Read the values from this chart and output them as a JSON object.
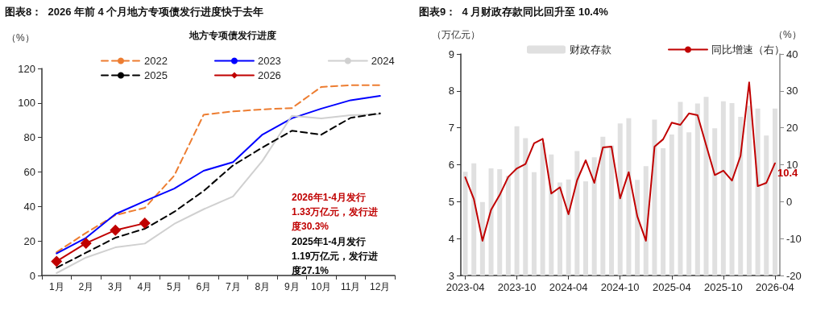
{
  "chart_data": [
    {
      "type": "line",
      "title": "图表8：  2026 年前 4 个月地方专项债发行进度快于去年",
      "subtitle": "地方专项债发行进度",
      "ylabel": "（%）",
      "categories": [
        "1月",
        "2月",
        "3月",
        "4月",
        "5月",
        "6月",
        "7月",
        "8月",
        "9月",
        "10月",
        "11月",
        "12月"
      ],
      "series": [
        {
          "name": "2022",
          "color": "#ed7d31",
          "line_style": "dashed",
          "marker": "none",
          "values": [
            13.5,
            24.7,
            35,
            39.2,
            57.9,
            93.2,
            95.1,
            96.3,
            97,
            109.3,
            110.3,
            110.3
          ]
        },
        {
          "name": "2023",
          "color": "#0000ff",
          "line_style": "solid",
          "marker": "none",
          "values": [
            12.8,
            21.8,
            35.6,
            43.1,
            50.4,
            60.7,
            65.7,
            81.7,
            91.1,
            96.7,
            101.6,
            104.1
          ]
        },
        {
          "name": "2024",
          "color": "#d0d0d0",
          "line_style": "solid",
          "marker": "none",
          "values": [
            1.4,
            10.4,
            16.3,
            18.5,
            29.9,
            38.4,
            45.8,
            66.5,
            92.6,
            91.1,
            92.9,
            93.5
          ]
        },
        {
          "name": "2025",
          "color": "#000000",
          "line_style": "dashed",
          "marker": "none",
          "values": [
            4.5,
            13.2,
            21.9,
            27.1,
            36.9,
            49,
            63.8,
            74.2,
            83.9,
            81.6,
            91.4,
            94
          ]
        },
        {
          "name": "2026",
          "color": "#c00000",
          "line_style": "solid",
          "marker": "diamond",
          "values": [
            8.2,
            18.7,
            26.3,
            30.3,
            null,
            null,
            null,
            null,
            null,
            null,
            null,
            null
          ]
        }
      ],
      "ylim": [
        0,
        120
      ],
      "yticks": [
        0,
        20,
        40,
        60,
        80,
        100,
        120
      ],
      "grid": false,
      "legend": "top",
      "annotations": [
        "2026年1-4月发行1.33万亿元，发行进度30.3%",
        "2025年1-4月发行1.19万亿元，发行进度27.1%"
      ]
    },
    {
      "type": "bar",
      "title": "图表9：  4 月财政存款同比回升至 10.4%",
      "ylabel": "（万亿元）",
      "y2label": "（%）",
      "x": [
        "2023-04",
        "2023-05",
        "2023-06",
        "2023-07",
        "2023-08",
        "2023-09",
        "2023-10",
        "2023-11",
        "2023-12",
        "2024-01",
        "2024-02",
        "2024-03",
        "2024-04",
        "2024-05",
        "2024-06",
        "2024-07",
        "2024-08",
        "2024-09",
        "2024-10",
        "2024-11",
        "2024-12",
        "2025-01",
        "2025-02",
        "2025-03",
        "2025-04",
        "2025-05",
        "2025-06",
        "2025-07",
        "2025-08",
        "2025-09",
        "2025-10",
        "2025-11",
        "2025-12",
        "2026-01",
        "2026-02",
        "2026-03",
        "2026-04"
      ],
      "series": [
        {
          "name": "财政存款",
          "color": "#e0e0e0",
          "values": [
            5.81,
            6.04,
            4.99,
            5.9,
            5.88,
            5.7,
            7.04,
            6.72,
            5.8,
            6.6,
            6.28,
            5.52,
            5.6,
            6.37,
            5.55,
            6.2,
            6.76,
            6.52,
            7.12,
            7.26,
            5.59,
            5.96,
            7.22,
            6.45,
            6.82,
            7.7,
            6.88,
            7.66,
            7.84,
            6.99,
            7.72,
            7.67,
            7.3,
            7.6,
            7.52,
            6.79,
            7.52
          ]
        },
        {
          "name": "同比增速（右）",
          "type": "line",
          "axis": "y2",
          "color": "#c00000",
          "marker": "none",
          "line_style": "solid",
          "values": [
            6.6,
            0.7,
            -10.6,
            -2.2,
            1.8,
            6.7,
            9,
            10.2,
            15.8,
            17,
            2.2,
            3.9,
            -3.4,
            5.8,
            11.2,
            5.1,
            14.7,
            14.9,
            0.9,
            8,
            -4,
            -10.6,
            14.9,
            16.9,
            21.4,
            20.8,
            23.9,
            23.4,
            15.3,
            7.2,
            8.4,
            5.7,
            12.4,
            32.3,
            4.2,
            5.1,
            10.4
          ],
          "value_labels": [
            null,
            null,
            null,
            null,
            null,
            null,
            null,
            null,
            null,
            null,
            null,
            null,
            null,
            null,
            null,
            null,
            null,
            null,
            null,
            null,
            null,
            null,
            null,
            null,
            null,
            null,
            null,
            null,
            null,
            null,
            null,
            null,
            null,
            null,
            null,
            null,
            "10.4"
          ]
        }
      ],
      "xlim": [
        "2023-03-16",
        "2026-04-18"
      ],
      "xticks": [
        "2023-04",
        "2023-10",
        "2024-04",
        "2024-10",
        "2025-04",
        "2025-10",
        "2026-04"
      ],
      "ylim": [
        3,
        9
      ],
      "yticks": [
        3,
        4,
        5,
        6,
        7,
        8,
        9
      ],
      "y2lim": [
        -20,
        40
      ],
      "y2ticks": [
        -20,
        -10,
        0,
        10,
        20,
        30,
        40
      ],
      "grid": false,
      "legend": "top"
    }
  ]
}
